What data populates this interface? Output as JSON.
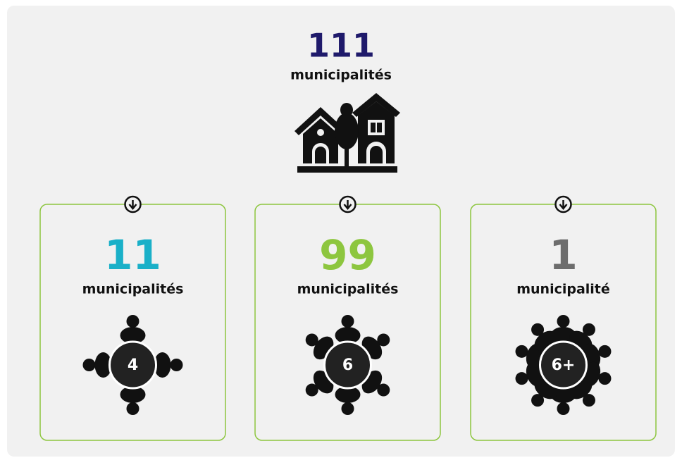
{
  "total": {
    "number": "111",
    "label": "municipalités"
  },
  "cards": [
    {
      "number": "11",
      "label": "municipalités",
      "seats": "4",
      "color": "#1ab0c8"
    },
    {
      "number": "99",
      "label": "municipalités",
      "seats": "6",
      "color": "#8dc63f"
    },
    {
      "number": "1",
      "label": "municipalité",
      "seats": "6+",
      "color": "#6d6d6d"
    }
  ]
}
